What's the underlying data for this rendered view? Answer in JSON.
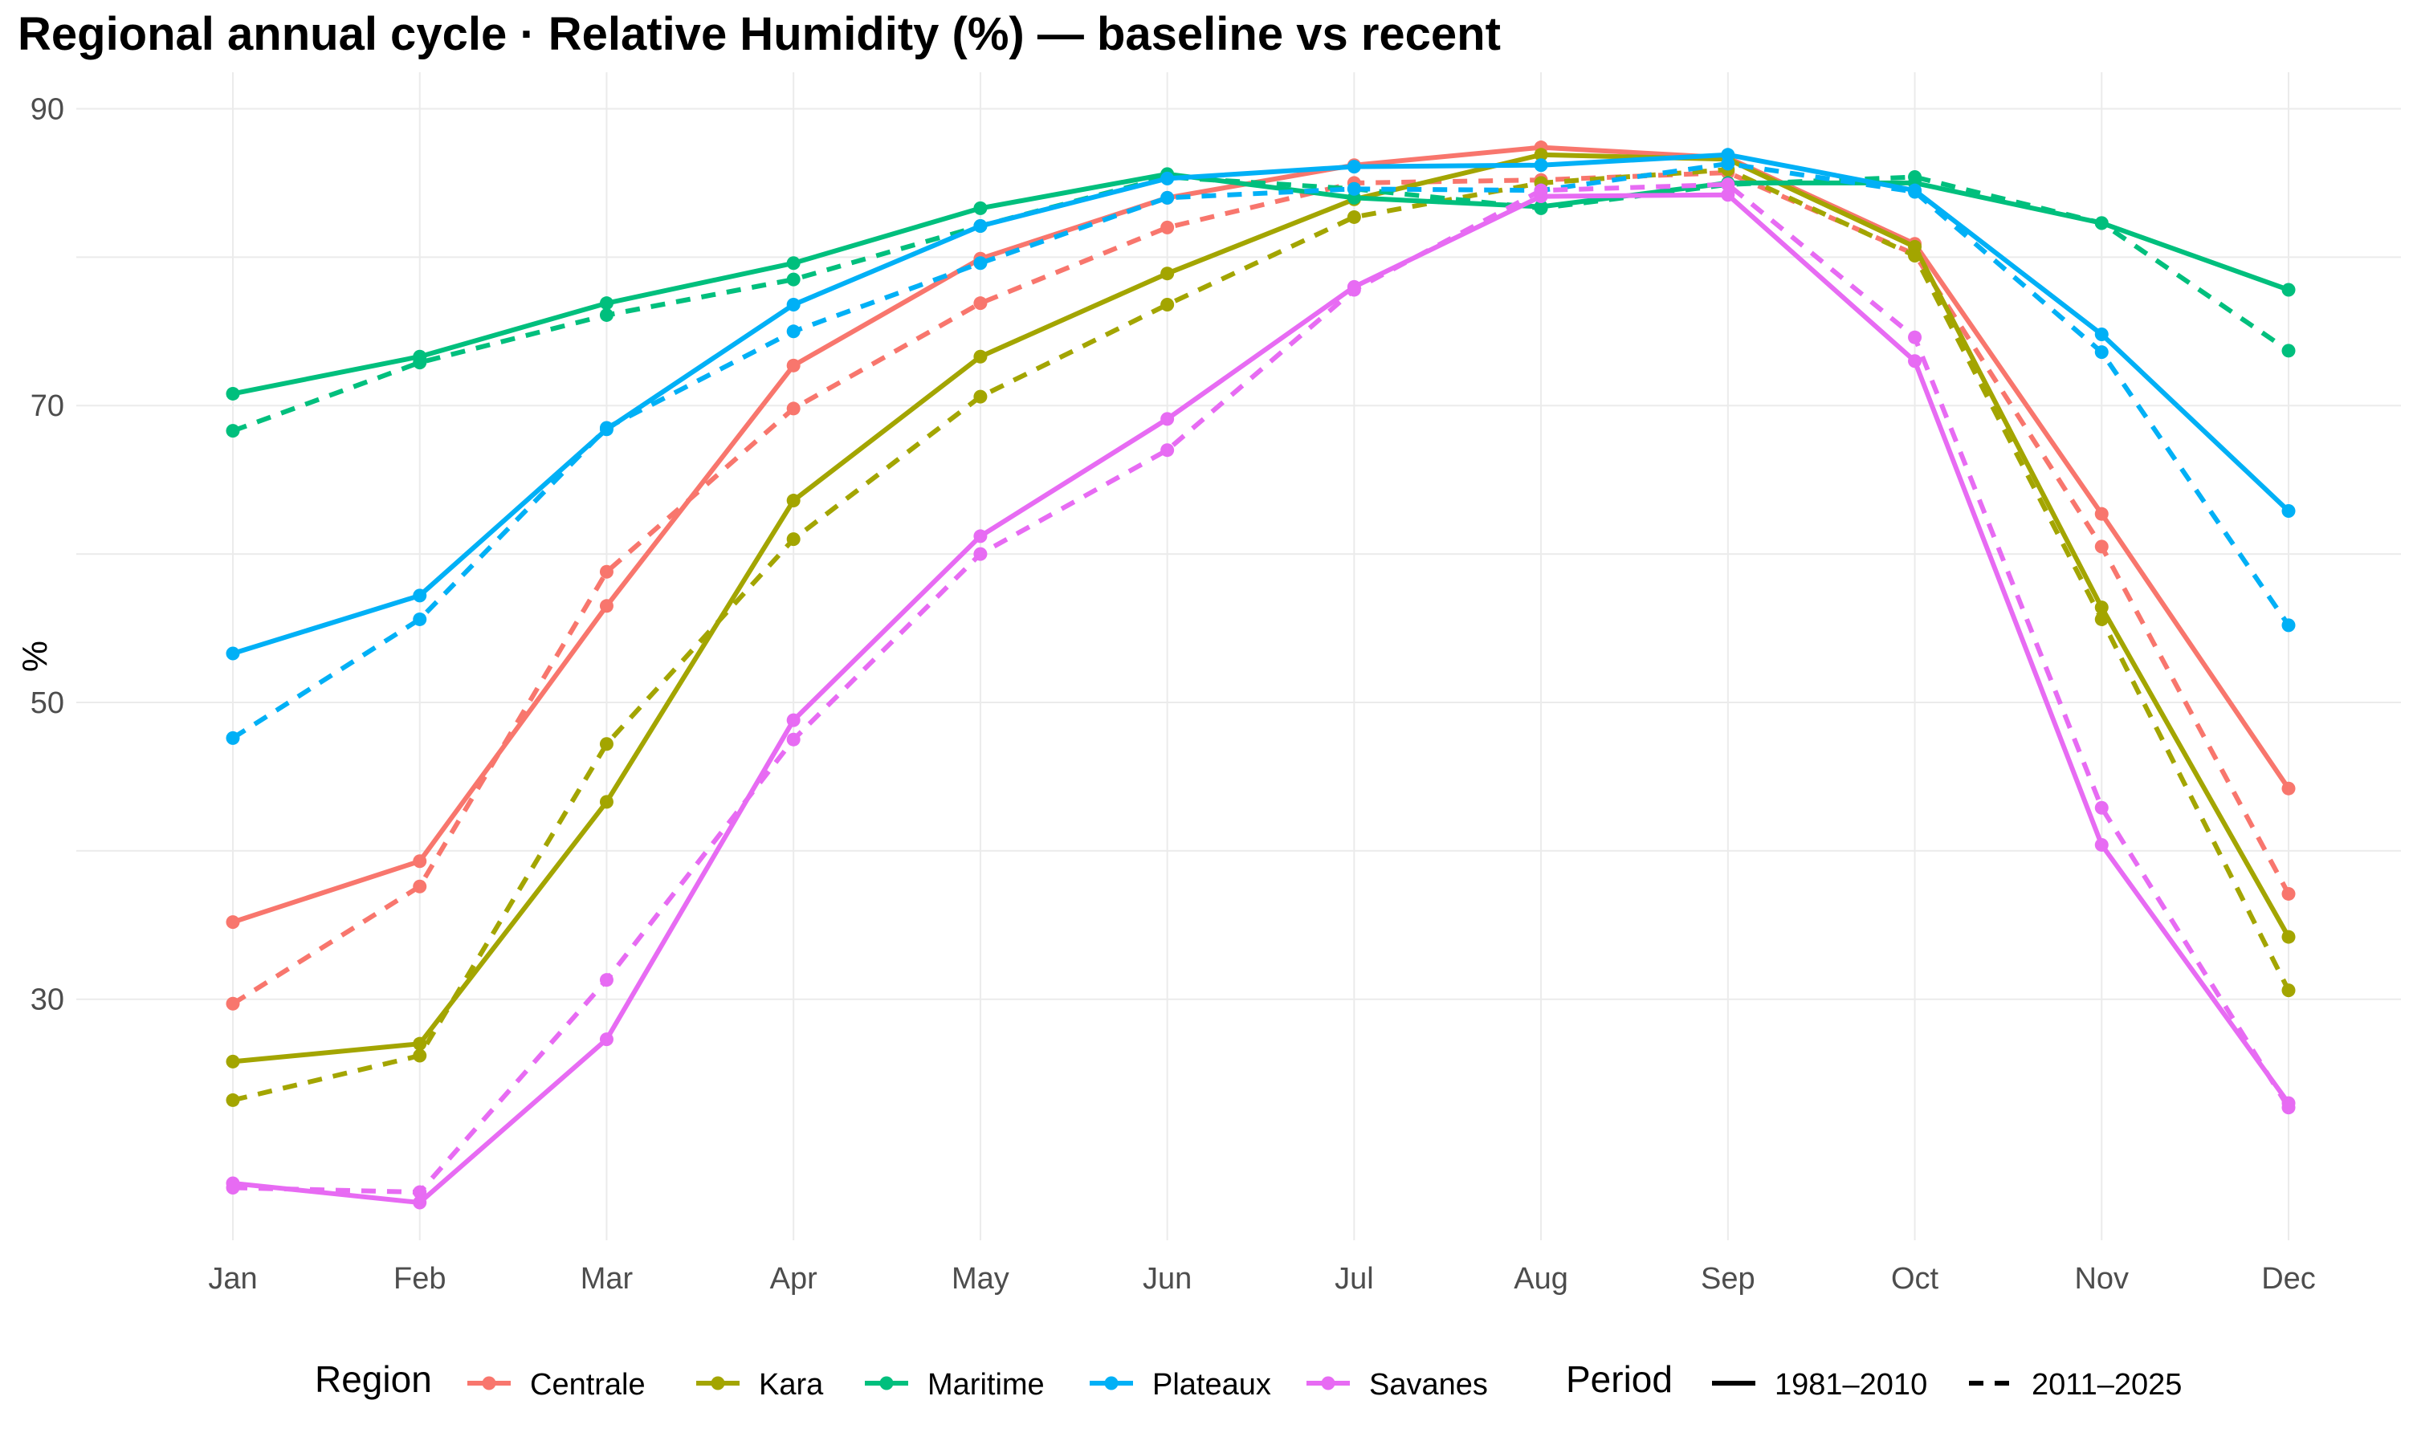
{
  "chart_data": {
    "type": "line",
    "title": "Regional annual cycle · Relative Humidity (%) — baseline vs recent",
    "xlabel": "",
    "ylabel": "%",
    "categories": [
      "Jan",
      "Feb",
      "Mar",
      "Apr",
      "May",
      "Jun",
      "Jul",
      "Aug",
      "Sep",
      "Oct",
      "Nov",
      "Dec"
    ],
    "ylim": [
      13,
      91
    ],
    "yticks": [
      30,
      50,
      70,
      90
    ],
    "grid": true,
    "legend_position": "bottom",
    "legend_region_title": "Region",
    "legend_period_title": "Period",
    "periods": [
      {
        "name": "1981–2010",
        "dash": "solid"
      },
      {
        "name": "2011–2025",
        "dash": "dashed"
      }
    ],
    "regions": [
      {
        "name": "Centrale",
        "color": "#F8766D"
      },
      {
        "name": "Kara",
        "color": "#A3A500"
      },
      {
        "name": "Maritime",
        "color": "#00BF7D"
      },
      {
        "name": "Plateaux",
        "color": "#00B0F6"
      },
      {
        "name": "Savanes",
        "color": "#E76BF3"
      }
    ],
    "series": [
      {
        "region": "Centrale",
        "period": "1981–2010",
        "values": [
          35.2,
          39.3,
          56.5,
          72.7,
          79.9,
          84.0,
          86.2,
          87.4,
          86.7,
          80.9,
          62.7,
          44.2
        ]
      },
      {
        "region": "Centrale",
        "period": "2011–2025",
        "values": [
          29.7,
          37.6,
          58.8,
          69.8,
          76.9,
          82.0,
          85.0,
          85.2,
          85.7,
          80.2,
          60.5,
          37.1
        ]
      },
      {
        "region": "Kara",
        "period": "1981–2010",
        "values": [
          25.8,
          27.0,
          43.3,
          63.6,
          73.3,
          78.9,
          83.9,
          86.9,
          86.6,
          80.7,
          56.4,
          34.2
        ]
      },
      {
        "region": "Kara",
        "period": "2011–2025",
        "values": [
          23.2,
          26.2,
          47.2,
          61.0,
          70.6,
          76.8,
          82.7,
          85.0,
          85.9,
          80.1,
          55.6,
          30.6
        ]
      },
      {
        "region": "Maritime",
        "period": "1981–2010",
        "values": [
          70.8,
          73.3,
          76.9,
          79.6,
          83.3,
          85.6,
          84.0,
          83.4,
          85.0,
          85.0,
          82.3,
          77.8
        ]
      },
      {
        "region": "Maritime",
        "period": "2011–2025",
        "values": [
          68.3,
          72.9,
          76.1,
          78.5,
          82.1,
          85.4,
          84.6,
          83.3,
          84.9,
          85.4,
          82.3,
          73.7
        ]
      },
      {
        "region": "Plateaux",
        "period": "1981–2010",
        "values": [
          53.3,
          57.2,
          68.4,
          76.8,
          82.1,
          85.3,
          86.1,
          86.2,
          86.9,
          84.5,
          74.8,
          62.9
        ]
      },
      {
        "region": "Plateaux",
        "period": "2011–2025",
        "values": [
          47.6,
          55.6,
          68.5,
          75.0,
          79.6,
          84.0,
          84.6,
          84.5,
          86.3,
          84.4,
          73.6,
          55.2
        ]
      },
      {
        "region": "Savanes",
        "period": "1981–2010",
        "values": [
          17.6,
          16.3,
          27.3,
          48.8,
          61.2,
          69.1,
          78.0,
          84.1,
          84.2,
          73.0,
          40.4,
          23.0
        ]
      },
      {
        "region": "Savanes",
        "period": "2011–2025",
        "values": [
          17.3,
          17.0,
          31.3,
          47.5,
          60.0,
          67.0,
          77.8,
          84.5,
          84.9,
          74.6,
          42.9,
          22.7
        ]
      }
    ]
  }
}
